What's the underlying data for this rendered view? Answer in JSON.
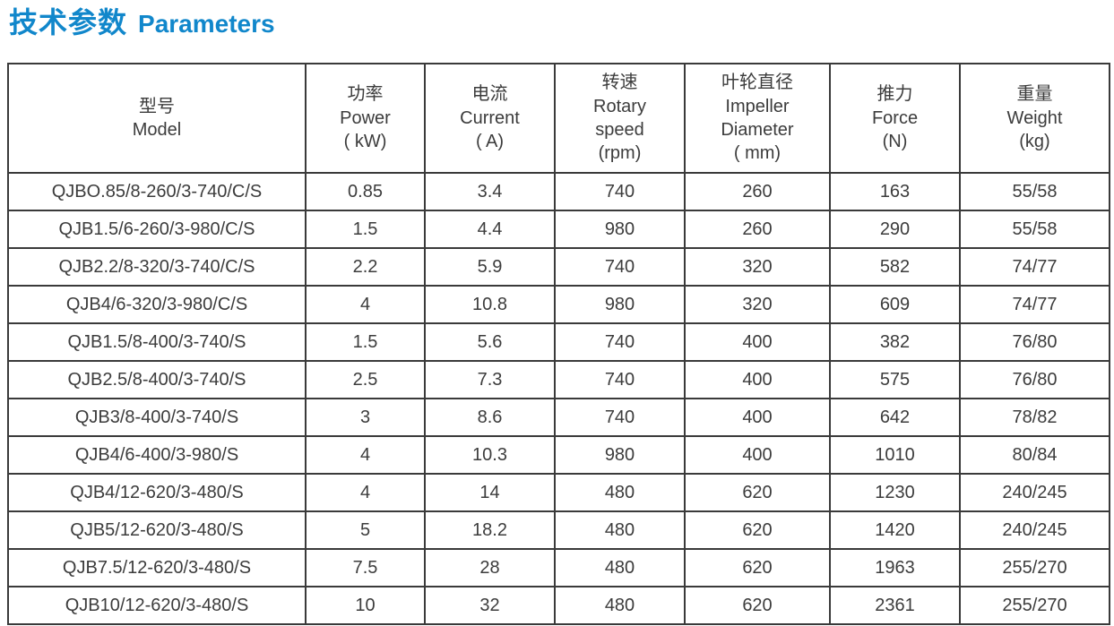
{
  "title": {
    "zh": "技术参数",
    "en": "Parameters"
  },
  "colors": {
    "accent": "#1187cb",
    "border": "#3a3a3a",
    "text": "#3c3c3c"
  },
  "table": {
    "columns": [
      {
        "zh": "型号",
        "en": "Model",
        "unit": ""
      },
      {
        "zh": "功率",
        "en": "Power",
        "unit": "( kW)"
      },
      {
        "zh": "电流",
        "en": "Current",
        "unit": "( A)"
      },
      {
        "zh": "转速",
        "en": "Rotary\nspeed",
        "unit": "(rpm)"
      },
      {
        "zh": "叶轮直径",
        "en": "Impeller\nDiameter",
        "unit": "( mm)"
      },
      {
        "zh": "推力",
        "en": "Force",
        "unit": "(N)"
      },
      {
        "zh": "重量",
        "en": "Weight",
        "unit": "(kg)"
      }
    ],
    "rows": [
      [
        "QJBO.85/8-260/3-740/C/S",
        "0.85",
        "3.4",
        "740",
        "260",
        "163",
        "55/58"
      ],
      [
        "QJB1.5/6-260/3-980/C/S",
        "1.5",
        "4.4",
        "980",
        "260",
        "290",
        "55/58"
      ],
      [
        "QJB2.2/8-320/3-740/C/S",
        "2.2",
        "5.9",
        "740",
        "320",
        "582",
        "74/77"
      ],
      [
        "QJB4/6-320/3-980/C/S",
        "4",
        "10.8",
        "980",
        "320",
        "609",
        "74/77"
      ],
      [
        "QJB1.5/8-400/3-740/S",
        "1.5",
        "5.6",
        "740",
        "400",
        "382",
        "76/80"
      ],
      [
        "QJB2.5/8-400/3-740/S",
        "2.5",
        "7.3",
        "740",
        "400",
        "575",
        "76/80"
      ],
      [
        "QJB3/8-400/3-740/S",
        "3",
        "8.6",
        "740",
        "400",
        "642",
        "78/82"
      ],
      [
        "QJB4/6-400/3-980/S",
        "4",
        "10.3",
        "980",
        "400",
        "1010",
        "80/84"
      ],
      [
        "QJB4/12-620/3-480/S",
        "4",
        "14",
        "480",
        "620",
        "1230",
        "240/245"
      ],
      [
        "QJB5/12-620/3-480/S",
        "5",
        "18.2",
        "480",
        "620",
        "1420",
        "240/245"
      ],
      [
        "QJB7.5/12-620/3-480/S",
        "7.5",
        "28",
        "480",
        "620",
        "1963",
        "255/270"
      ],
      [
        "QJB10/12-620/3-480/S",
        "10",
        "32",
        "480",
        "620",
        "2361",
        "255/270"
      ]
    ]
  }
}
